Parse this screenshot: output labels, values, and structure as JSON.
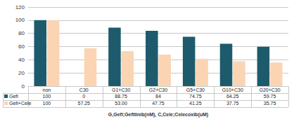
{
  "chart_data": {
    "type": "bar",
    "xlabel": "G,Gefi;Gefitinib(nM), C,Cele;Celecoxib(uM)",
    "categories": [
      "non",
      "C30",
      "G1+C30",
      "G2+C30",
      "G5+C30",
      "G10+C30",
      "G20+C30"
    ],
    "series": [
      {
        "name": "Gefi",
        "color": "#1d5b6c",
        "values": [
          100,
          0,
          88.75,
          84,
          74.75,
          64.25,
          59.75
        ],
        "value_labels": [
          "100",
          "0",
          "88.75",
          "84",
          "74.75",
          "64.25",
          "59.75"
        ]
      },
      {
        "name": "Gefi+Cele",
        "color": "#fbd4b3",
        "values": [
          100,
          57.25,
          53,
          47.75,
          41.25,
          37.75,
          35.75
        ],
        "value_labels": [
          "100",
          "57.25",
          "53.00",
          "47.75",
          "41.25",
          "37.75",
          "35.75"
        ]
      }
    ],
    "ylim": [
      0,
      120
    ],
    "yticks": [
      0,
      20,
      40,
      60,
      80,
      100,
      120
    ],
    "grid": true,
    "legend": "bottom-left"
  }
}
